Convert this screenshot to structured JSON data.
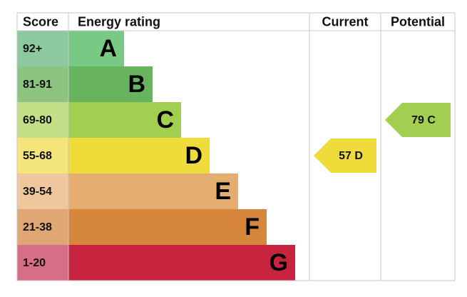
{
  "chart_data": {
    "type": "epc",
    "headers": [
      "Score",
      "Energy rating",
      "Current",
      "Potential"
    ],
    "bands": [
      {
        "score": "92+",
        "letter": "A",
        "color": "#77c984",
        "score_color": "#8dc9a0"
      },
      {
        "score": "81-91",
        "letter": "B",
        "color": "#68b45e",
        "score_color": "#8cc47f"
      },
      {
        "score": "69-80",
        "letter": "C",
        "color": "#a3cf50",
        "score_color": "#c2df88"
      },
      {
        "score": "55-68",
        "letter": "D",
        "color": "#efdc3a",
        "score_color": "#f4e47c"
      },
      {
        "score": "39-54",
        "letter": "E",
        "color": "#e6ad71",
        "score_color": "#efc79d"
      },
      {
        "score": "21-38",
        "letter": "F",
        "color": "#d6873b",
        "score_color": "#e0a774"
      },
      {
        "score": "1-20",
        "letter": "G",
        "color": "#c8243f",
        "score_color": "#d66f85"
      }
    ],
    "current": {
      "value": 57,
      "label": "57 D"
    },
    "potential": {
      "value": 79,
      "label": "79 C"
    }
  }
}
